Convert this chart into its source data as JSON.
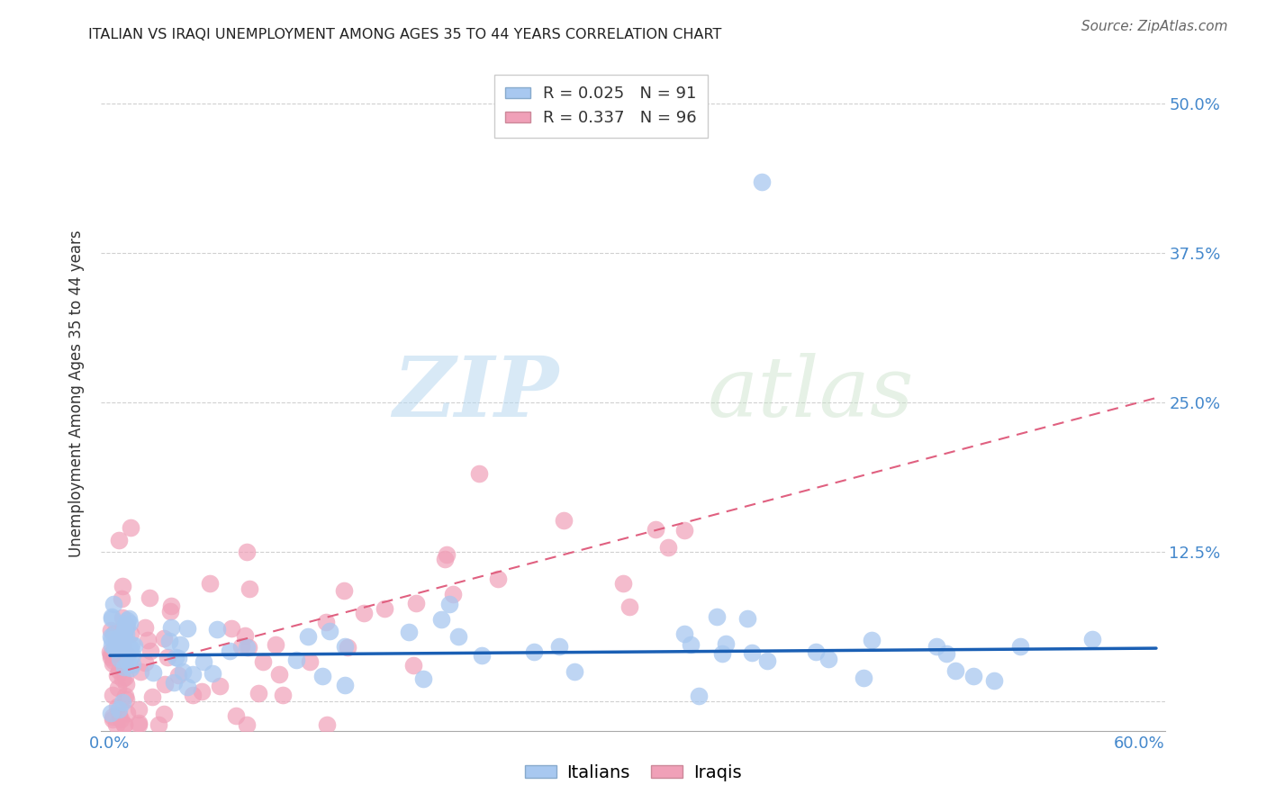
{
  "title": "ITALIAN VS IRAQI UNEMPLOYMENT AMONG AGES 35 TO 44 YEARS CORRELATION CHART",
  "source": "Source: ZipAtlas.com",
  "ylabel": "Unemployment Among Ages 35 to 44 years",
  "xlabel": "",
  "xlim": [
    -0.005,
    0.615
  ],
  "ylim": [
    -0.025,
    0.54
  ],
  "yticks": [
    0.0,
    0.125,
    0.25,
    0.375,
    0.5
  ],
  "ytick_labels": [
    "",
    "12.5%",
    "25.0%",
    "37.5%",
    "50.0%"
  ],
  "xticks": [
    0.0,
    0.1,
    0.2,
    0.3,
    0.4,
    0.5,
    0.6
  ],
  "xtick_labels": [
    "0.0%",
    "",
    "",
    "",
    "",
    "",
    "60.0%"
  ],
  "italian_R": 0.025,
  "italian_N": 91,
  "iraqi_R": 0.337,
  "iraqi_N": 96,
  "italian_color": "#a8c8f0",
  "iraqi_color": "#f0a0b8",
  "italian_line_color": "#1a5fb4",
  "iraqi_line_color": "#e06080",
  "watermark_zip": "ZIP",
  "watermark_atlas": "atlas",
  "background_color": "#ffffff",
  "grid_color": "#cccccc",
  "italian_slope": 0.01,
  "italian_intercept": 0.038,
  "iraqi_slope": 0.38,
  "iraqi_intercept": 0.02
}
